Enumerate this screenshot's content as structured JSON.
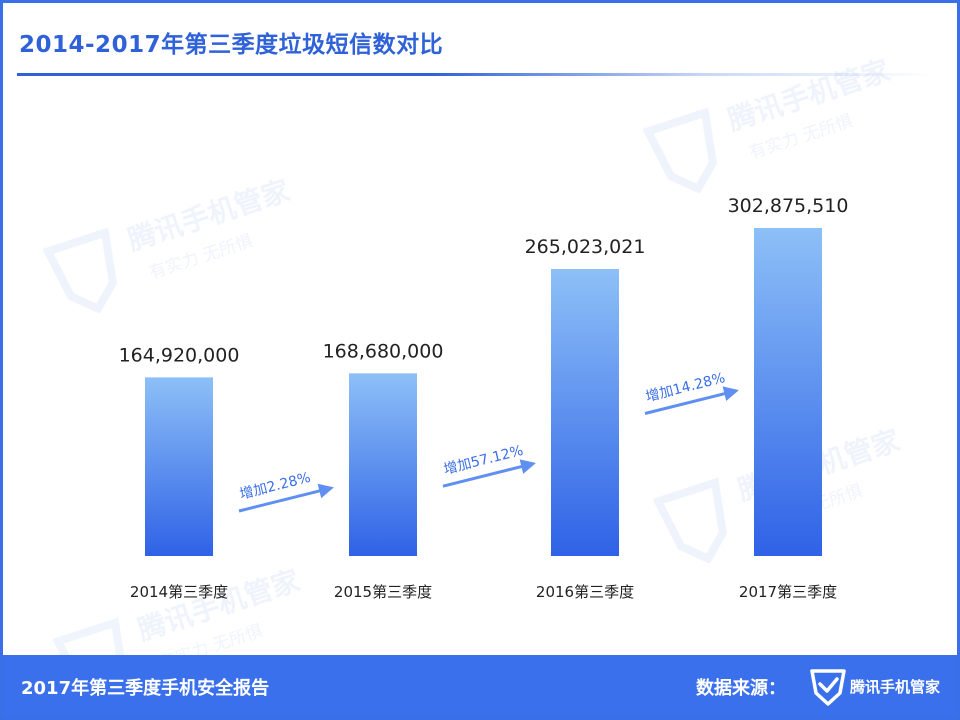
{
  "title": "2014-2017年第三季度垃圾短信数对比",
  "chart_data": {
    "type": "bar",
    "title": "2014-2017年第三季度垃圾短信数对比",
    "categories": [
      "2014第三季度",
      "2015第三季度",
      "2016第三季度",
      "2017第三季度"
    ],
    "values": [
      164920000,
      168680000,
      265023021,
      302875510
    ],
    "value_labels": [
      "164,920,000",
      "168,680,000",
      "265,023,021",
      "302,875,510"
    ],
    "growth_annotations": [
      "增加2.28%",
      "增加57.12%",
      "增加14.28%"
    ],
    "ylim": [
      0,
      302875510
    ],
    "grid": false,
    "bar_color_top": "#8dc0f7",
    "bar_color_bottom": "#2f62e6",
    "arrow_color": "#5f8ff0"
  },
  "footer": {
    "report_title": "2017年第三季度手机安全报告",
    "source_label": "数据来源：",
    "brand": "腾讯手机管家"
  },
  "watermark": {
    "brand": "腾讯手机管家",
    "slogan": "有实力  无所惧"
  },
  "colors": {
    "accent": "#3a70ec",
    "title": "#2f62d8"
  }
}
